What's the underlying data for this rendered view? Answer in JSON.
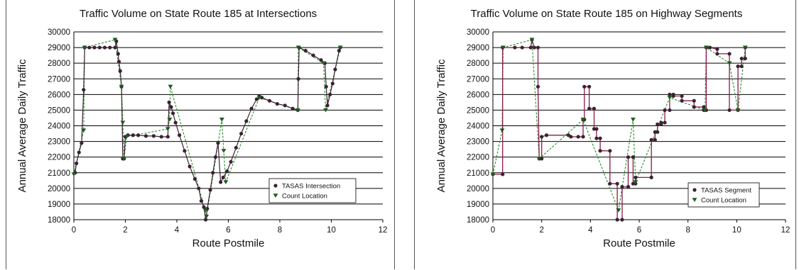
{
  "colors": {
    "grid": "#000000",
    "segment_line": "#8b1a4a",
    "count_line": "#2a8a2a",
    "marker": "#3a2233",
    "count_marker": "#1e5a1e"
  },
  "chart_data": [
    {
      "type": "line",
      "title": "Traffic Volume on State Route 185 at Intersections",
      "xlabel": "Route Postmile",
      "ylabel": "Annual Average Daily Traffic",
      "xlim": [
        0,
        12
      ],
      "ylim": [
        18000,
        30000
      ],
      "xticks": [
        "0",
        "2",
        "4",
        "6",
        "8",
        "10",
        "12"
      ],
      "yticks": [
        "18000",
        "19000",
        "20000",
        "21000",
        "22000",
        "23000",
        "24000",
        "25000",
        "26000",
        "27000",
        "28000",
        "29000",
        "30000"
      ],
      "grid": "horizontal",
      "legend_position": "lower-right",
      "series": [
        {
          "name": "TASAS Intersection",
          "marker": "circle",
          "points": [
            [
              0.05,
              21000
            ],
            [
              0.1,
              21600
            ],
            [
              0.2,
              22300
            ],
            [
              0.3,
              22900
            ],
            [
              0.38,
              26300
            ],
            [
              0.42,
              29000
            ],
            [
              0.6,
              29000
            ],
            [
              0.8,
              29000
            ],
            [
              1.0,
              29000
            ],
            [
              1.2,
              29000
            ],
            [
              1.4,
              29000
            ],
            [
              1.6,
              29000
            ],
            [
              1.65,
              29400
            ],
            [
              1.72,
              28600
            ],
            [
              1.75,
              28100
            ],
            [
              1.8,
              27500
            ],
            [
              1.85,
              26500
            ],
            [
              1.9,
              21900
            ],
            [
              1.95,
              21900
            ],
            [
              2.0,
              23300
            ],
            [
              2.1,
              23400
            ],
            [
              2.3,
              23400
            ],
            [
              2.5,
              23400
            ],
            [
              2.8,
              23350
            ],
            [
              3.1,
              23350
            ],
            [
              3.4,
              23300
            ],
            [
              3.65,
              23300
            ],
            [
              3.7,
              25500
            ],
            [
              3.78,
              25200
            ],
            [
              3.85,
              24800
            ],
            [
              3.95,
              24200
            ],
            [
              4.1,
              23400
            ],
            [
              4.3,
              22400
            ],
            [
              4.5,
              21400
            ],
            [
              4.7,
              20600
            ],
            [
              4.85,
              20000
            ],
            [
              4.95,
              19200
            ],
            [
              5.05,
              18800
            ],
            [
              5.12,
              18000
            ],
            [
              5.18,
              18700
            ],
            [
              5.3,
              19900
            ],
            [
              5.4,
              21000
            ],
            [
              5.5,
              22000
            ],
            [
              5.6,
              22900
            ],
            [
              5.7,
              20400
            ],
            [
              5.8,
              20700
            ],
            [
              5.95,
              21100
            ],
            [
              6.1,
              21700
            ],
            [
              6.3,
              22600
            ],
            [
              6.5,
              23500
            ],
            [
              6.7,
              24300
            ],
            [
              6.9,
              25100
            ],
            [
              7.1,
              25700
            ],
            [
              7.2,
              25900
            ],
            [
              7.3,
              25800
            ],
            [
              7.6,
              25600
            ],
            [
              7.9,
              25400
            ],
            [
              8.2,
              25300
            ],
            [
              8.5,
              25100
            ],
            [
              8.7,
              25000
            ],
            [
              8.72,
              27000
            ],
            [
              8.75,
              29000
            ],
            [
              9.0,
              28800
            ],
            [
              9.3,
              28500
            ],
            [
              9.6,
              28200
            ],
            [
              9.75,
              28000
            ],
            [
              9.8,
              26500
            ],
            [
              9.85,
              25300
            ],
            [
              9.95,
              26000
            ],
            [
              10.05,
              26700
            ],
            [
              10.15,
              27600
            ],
            [
              10.3,
              28800
            ],
            [
              10.35,
              29000
            ]
          ]
        },
        {
          "name": "Count Location",
          "marker": "triangle-down",
          "points": [
            [
              0.0,
              20900
            ],
            [
              0.38,
              23700
            ],
            [
              0.42,
              29000
            ],
            [
              1.6,
              29500
            ],
            [
              1.85,
              26500
            ],
            [
              1.9,
              24200
            ],
            [
              1.95,
              21900
            ],
            [
              2.05,
              23300
            ],
            [
              3.65,
              23800
            ],
            [
              3.72,
              24400
            ],
            [
              3.75,
              26500
            ],
            [
              5.1,
              18600
            ],
            [
              5.15,
              18200
            ],
            [
              5.75,
              24400
            ],
            [
              5.82,
              22400
            ],
            [
              5.9,
              20400
            ],
            [
              7.2,
              25800
            ],
            [
              8.7,
              25000
            ],
            [
              8.72,
              29000
            ],
            [
              9.7,
              28000
            ],
            [
              9.78,
              25000
            ],
            [
              10.35,
              29000
            ]
          ]
        }
      ]
    },
    {
      "type": "line",
      "title": "Traffic Volume on State Route 185 on Highway Segments",
      "xlabel": "Route Postmile",
      "ylabel": "Annual Average Daily Traffic",
      "xlim": [
        0,
        12
      ],
      "ylim": [
        18000,
        30000
      ],
      "xticks": [
        "0",
        "2",
        "4",
        "6",
        "8",
        "10",
        "12"
      ],
      "yticks": [
        "18000",
        "19000",
        "20000",
        "21000",
        "22000",
        "23000",
        "24000",
        "25000",
        "26000",
        "27000",
        "28000",
        "29000",
        "30000"
      ],
      "grid": "horizontal",
      "legend_position": "lower-right",
      "series": [
        {
          "name": "TASAS Segment",
          "marker": "circle",
          "step_points": [
            [
              0.0,
              20900
            ],
            [
              0.4,
              20900
            ],
            [
              0.4,
              29000
            ],
            [
              0.9,
              29000
            ],
            [
              1.2,
              29000
            ],
            [
              1.55,
              29000
            ],
            [
              1.6,
              29500
            ],
            [
              1.7,
              29000
            ],
            [
              1.85,
              29000
            ],
            [
              1.85,
              26500
            ],
            [
              1.9,
              21900
            ],
            [
              2.0,
              21900
            ],
            [
              2.0,
              23300
            ],
            [
              2.2,
              23400
            ],
            [
              3.1,
              23400
            ],
            [
              3.2,
              23300
            ],
            [
              3.5,
              23300
            ],
            [
              3.7,
              23300
            ],
            [
              3.7,
              24400
            ],
            [
              3.75,
              24400
            ],
            [
              3.75,
              26500
            ],
            [
              3.95,
              26500
            ],
            [
              3.95,
              25100
            ],
            [
              4.15,
              25100
            ],
            [
              4.15,
              23800
            ],
            [
              4.25,
              23800
            ],
            [
              4.25,
              23200
            ],
            [
              4.4,
              23200
            ],
            [
              4.4,
              22400
            ],
            [
              4.8,
              22400
            ],
            [
              4.8,
              20300
            ],
            [
              5.1,
              20300
            ],
            [
              5.1,
              18000
            ],
            [
              5.3,
              18000
            ],
            [
              5.3,
              20100
            ],
            [
              5.55,
              20100
            ],
            [
              5.55,
              22000
            ],
            [
              5.75,
              22000
            ],
            [
              5.75,
              20300
            ],
            [
              5.85,
              20300
            ],
            [
              5.85,
              20700
            ],
            [
              6.5,
              20700
            ],
            [
              6.5,
              23100
            ],
            [
              6.65,
              23100
            ],
            [
              6.65,
              23600
            ],
            [
              6.75,
              23600
            ],
            [
              6.75,
              24100
            ],
            [
              6.9,
              24100
            ],
            [
              6.9,
              24200
            ],
            [
              7.05,
              24200
            ],
            [
              7.05,
              25000
            ],
            [
              7.25,
              25000
            ],
            [
              7.25,
              26000
            ],
            [
              7.4,
              26000
            ],
            [
              7.4,
              25900
            ],
            [
              7.75,
              25900
            ],
            [
              7.75,
              25600
            ],
            [
              8.25,
              25600
            ],
            [
              8.25,
              25200
            ],
            [
              8.65,
              25200
            ],
            [
              8.65,
              25000
            ],
            [
              8.75,
              25000
            ],
            [
              8.75,
              29000
            ],
            [
              8.9,
              29000
            ],
            [
              9.2,
              28900
            ],
            [
              9.2,
              28600
            ],
            [
              9.7,
              28600
            ],
            [
              9.7,
              25000
            ],
            [
              10.05,
              25000
            ],
            [
              10.05,
              27800
            ],
            [
              10.2,
              27800
            ],
            [
              10.2,
              28300
            ],
            [
              10.35,
              28300
            ],
            [
              10.35,
              29000
            ]
          ]
        },
        {
          "name": "Count Location",
          "marker": "triangle-down",
          "points": [
            [
              0.0,
              20900
            ],
            [
              0.38,
              23700
            ],
            [
              0.42,
              29000
            ],
            [
              1.6,
              29500
            ],
            [
              1.9,
              21900
            ],
            [
              3.7,
              24400
            ],
            [
              5.15,
              18600
            ],
            [
              5.75,
              24400
            ],
            [
              5.85,
              20400
            ],
            [
              7.25,
              25800
            ],
            [
              8.7,
              25000
            ],
            [
              8.75,
              29000
            ],
            [
              9.7,
              28000
            ],
            [
              10.05,
              25000
            ],
            [
              10.35,
              29000
            ]
          ]
        }
      ]
    }
  ]
}
